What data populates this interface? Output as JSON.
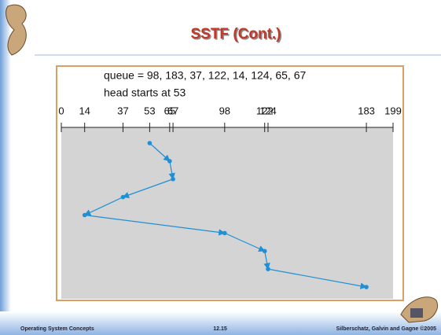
{
  "title": "SSTF (Cont.)",
  "figure": {
    "queue_label": "queue = 98, 183, 37, 122, 14, 124, 65, 67",
    "head_label": "head starts at 53",
    "xlim": [
      0,
      199
    ],
    "xticks": [
      0,
      14,
      37,
      53,
      65,
      67,
      98,
      122,
      124,
      183,
      199
    ],
    "path": [
      53,
      65,
      67,
      37,
      14,
      98,
      122,
      124,
      183
    ],
    "color": "#1f8fd6"
  },
  "footer": {
    "left": "Operating System Concepts",
    "center": "12.15",
    "right": "Silberschatz, Galvin and Gagne ©2005"
  }
}
